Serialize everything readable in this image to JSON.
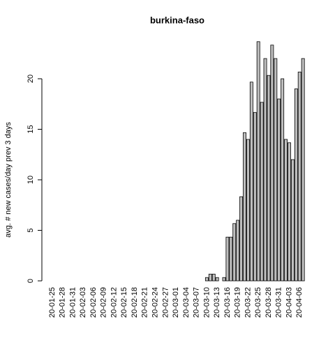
{
  "chart_data": {
    "type": "bar",
    "title": "burkina-faso",
    "ylabel": "avg. # new cases/day prev  3  days",
    "categories": [
      "20-01-25",
      null,
      null,
      "20-01-28",
      null,
      null,
      "20-01-31",
      null,
      null,
      "20-02-03",
      null,
      null,
      "20-02-06",
      null,
      null,
      "20-02-09",
      null,
      null,
      "20-02-12",
      null,
      null,
      "20-02-15",
      null,
      null,
      "20-02-18",
      null,
      null,
      "20-02-21",
      null,
      null,
      "20-02-24",
      null,
      null,
      "20-02-27",
      null,
      null,
      "20-03-01",
      null,
      null,
      "20-03-04",
      null,
      null,
      "20-03-07",
      null,
      null,
      "20-03-10",
      null,
      null,
      "20-03-13",
      null,
      null,
      "20-03-16",
      null,
      null,
      "20-03-19",
      null,
      null,
      "20-03-22",
      null,
      null,
      "20-03-25",
      null,
      null,
      "20-03-28",
      null,
      null,
      "20-03-31",
      null,
      null,
      "20-04-03",
      null,
      null,
      "20-04-06",
      null
    ],
    "values": [
      0,
      0,
      0,
      0,
      0,
      0,
      0,
      0,
      0,
      0,
      0,
      0,
      0,
      0,
      0,
      0,
      0,
      0,
      0,
      0,
      0,
      0,
      0,
      0,
      0,
      0,
      0,
      0,
      0,
      0,
      0,
      0,
      0,
      0,
      0,
      0,
      0,
      0,
      0,
      0,
      0,
      0,
      0,
      0,
      0,
      0.33,
      0.67,
      0.67,
      0.33,
      0,
      0.33,
      4.33,
      4.33,
      5.67,
      6,
      8.33,
      14.67,
      14,
      19.67,
      16.67,
      23.67,
      17.67,
      22,
      20.33,
      23.33,
      22,
      18,
      20,
      14,
      13.67,
      12,
      19,
      20.67,
      22
    ],
    "color": "#bebebe",
    "ylim": [
      0,
      25
    ],
    "yticks": [
      0,
      5,
      10,
      15,
      20
    ]
  }
}
